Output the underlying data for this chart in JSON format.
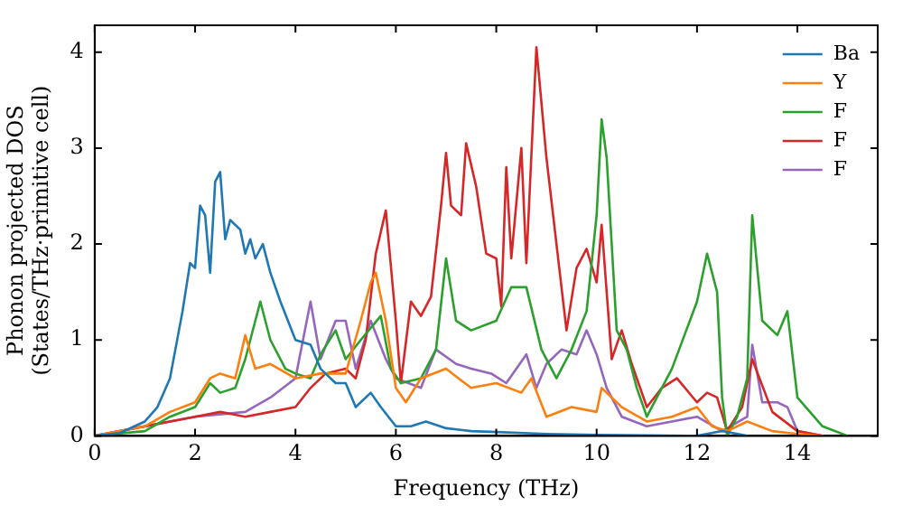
{
  "chart_data": {
    "type": "line",
    "xlabel": "Frequency (THz)",
    "ylabel": "Phonon projected DOS\n(States/THz·primitive cell)",
    "xlim": [
      0,
      15.6
    ],
    "xticks": [
      0,
      2,
      4,
      6,
      8,
      10,
      12,
      14
    ],
    "ylim": [
      0,
      4.28
    ],
    "yticks": [
      0,
      1,
      2,
      3,
      4
    ],
    "grid": false,
    "legend": "top right",
    "marker": "none",
    "line_style": "solid",
    "series": [
      {
        "name": "Ba",
        "color": "#1f77b4",
        "x": [
          0,
          0.5,
          1,
          1.25,
          1.5,
          1.75,
          1.9,
          2.0,
          2.1,
          2.2,
          2.3,
          2.4,
          2.5,
          2.6,
          2.7,
          2.9,
          3.0,
          3.1,
          3.2,
          3.35,
          3.5,
          3.7,
          4.0,
          4.3,
          4.5,
          4.8,
          5.0,
          5.2,
          5.5,
          5.7,
          6.0,
          6.3,
          6.6,
          7.0,
          7.5,
          8,
          9,
          10,
          12,
          12.5,
          13
        ],
        "values": [
          0,
          0.03,
          0.15,
          0.3,
          0.6,
          1.3,
          1.8,
          1.75,
          2.4,
          2.3,
          1.7,
          2.65,
          2.75,
          2.05,
          2.25,
          2.15,
          1.9,
          2.05,
          1.85,
          2.0,
          1.7,
          1.4,
          1.0,
          0.95,
          0.7,
          0.55,
          0.55,
          0.3,
          0.45,
          0.3,
          0.1,
          0.1,
          0.15,
          0.08,
          0.05,
          0.04,
          0.02,
          0.01,
          0,
          0.05,
          0
        ]
      },
      {
        "name": "Y",
        "color": "#ff7f0e",
        "x": [
          0,
          1,
          1.5,
          2,
          2.3,
          2.5,
          2.8,
          3.0,
          3.2,
          3.5,
          4.0,
          4.5,
          5.0,
          5.3,
          5.5,
          5.6,
          5.8,
          6.0,
          6.2,
          6.5,
          7.0,
          7.5,
          8.0,
          8.5,
          8.7,
          9.0,
          9.5,
          10.0,
          10.1,
          10.5,
          11,
          11.5,
          12,
          12.3,
          12.6,
          13,
          13.5,
          14,
          14.5
        ],
        "values": [
          0,
          0.1,
          0.25,
          0.35,
          0.6,
          0.65,
          0.6,
          1.05,
          0.7,
          0.75,
          0.6,
          0.65,
          0.65,
          1.2,
          1.6,
          1.7,
          1.2,
          0.5,
          0.35,
          0.6,
          0.7,
          0.5,
          0.55,
          0.45,
          0.6,
          0.2,
          0.3,
          0.25,
          0.5,
          0.3,
          0.15,
          0.2,
          0.3,
          0.1,
          0.05,
          0.15,
          0.05,
          0.02,
          0
        ]
      },
      {
        "name": "F",
        "color": "#2ca02c",
        "x": [
          0,
          1,
          1.5,
          2,
          2.3,
          2.5,
          2.8,
          3.0,
          3.3,
          3.5,
          3.8,
          4.0,
          4.3,
          4.5,
          4.8,
          5.0,
          5.3,
          5.7,
          5.9,
          6.1,
          6.5,
          6.8,
          7.0,
          7.2,
          7.5,
          8.0,
          8.3,
          8.6,
          8.9,
          9.2,
          9.5,
          9.8,
          10.0,
          10.1,
          10.2,
          10.4,
          10.6,
          10.8,
          11,
          11.5,
          12.0,
          12.2,
          12.4,
          12.5,
          12.6,
          12.8,
          13.0,
          13.1,
          13.3,
          13.6,
          13.8,
          14,
          14.5,
          15
        ],
        "values": [
          0,
          0.05,
          0.2,
          0.3,
          0.55,
          0.45,
          0.5,
          0.8,
          1.4,
          1.0,
          0.7,
          0.65,
          0.6,
          0.85,
          1.1,
          0.8,
          1.0,
          1.25,
          0.7,
          0.55,
          0.6,
          0.9,
          1.85,
          1.2,
          1.1,
          1.2,
          1.55,
          1.55,
          0.9,
          0.6,
          0.9,
          1.3,
          2.3,
          3.3,
          2.9,
          1.1,
          0.9,
          0.5,
          0.2,
          0.7,
          1.4,
          1.9,
          1.5,
          0.4,
          0,
          0.2,
          0.6,
          2.3,
          1.2,
          1.05,
          1.3,
          0.4,
          0.1,
          0
        ]
      },
      {
        "name": "F",
        "color": "#d62728",
        "x": [
          0,
          2,
          2.5,
          3,
          3.5,
          4,
          4.3,
          4.6,
          5.0,
          5.2,
          5.4,
          5.6,
          5.8,
          6.0,
          6.1,
          6.3,
          6.5,
          6.7,
          6.9,
          7.0,
          7.1,
          7.3,
          7.4,
          7.6,
          7.8,
          8.0,
          8.1,
          8.2,
          8.3,
          8.5,
          8.6,
          8.8,
          9.0,
          9.2,
          9.4,
          9.6,
          9.8,
          10.0,
          10.1,
          10.3,
          10.5,
          10.7,
          11,
          11.3,
          11.6,
          12,
          12.2,
          12.4,
          12.6,
          12.9,
          13.1,
          13.5,
          14,
          14.5
        ],
        "values": [
          0,
          0.2,
          0.25,
          0.2,
          0.25,
          0.3,
          0.5,
          0.65,
          0.7,
          0.6,
          1.0,
          1.9,
          2.35,
          1.2,
          0.55,
          1.4,
          1.25,
          1.45,
          2.4,
          2.95,
          2.4,
          2.3,
          3.05,
          2.6,
          1.9,
          1.85,
          1.35,
          2.8,
          1.85,
          3.0,
          1.8,
          4.05,
          2.9,
          2.0,
          1.1,
          1.75,
          1.95,
          1.6,
          2.2,
          0.8,
          1.1,
          0.75,
          0.3,
          0.5,
          0.6,
          0.35,
          0.45,
          0.4,
          0.05,
          0.3,
          0.8,
          0.25,
          0.05,
          0
        ]
      },
      {
        "name": "F",
        "color": "#9467bd",
        "x": [
          0,
          2,
          3,
          3.5,
          4.0,
          4.3,
          4.5,
          4.8,
          5.0,
          5.2,
          5.5,
          5.8,
          6.0,
          6.5,
          6.8,
          7.2,
          7.5,
          7.9,
          8.2,
          8.6,
          8.8,
          9.0,
          9.3,
          9.6,
          9.8,
          10.0,
          10.2,
          10.5,
          11,
          11.5,
          12,
          12.5,
          13,
          13.1,
          13.3,
          13.6,
          13.8,
          14,
          14.5
        ],
        "values": [
          0,
          0.2,
          0.25,
          0.4,
          0.6,
          1.4,
          0.8,
          1.2,
          1.2,
          0.7,
          1.2,
          0.8,
          0.6,
          0.5,
          0.9,
          0.75,
          0.7,
          0.65,
          0.55,
          0.85,
          0.5,
          0.75,
          0.9,
          0.85,
          1.1,
          0.85,
          0.5,
          0.2,
          0.1,
          0.15,
          0.2,
          0.05,
          0.2,
          0.95,
          0.35,
          0.35,
          0.3,
          0.05,
          0
        ]
      }
    ]
  }
}
